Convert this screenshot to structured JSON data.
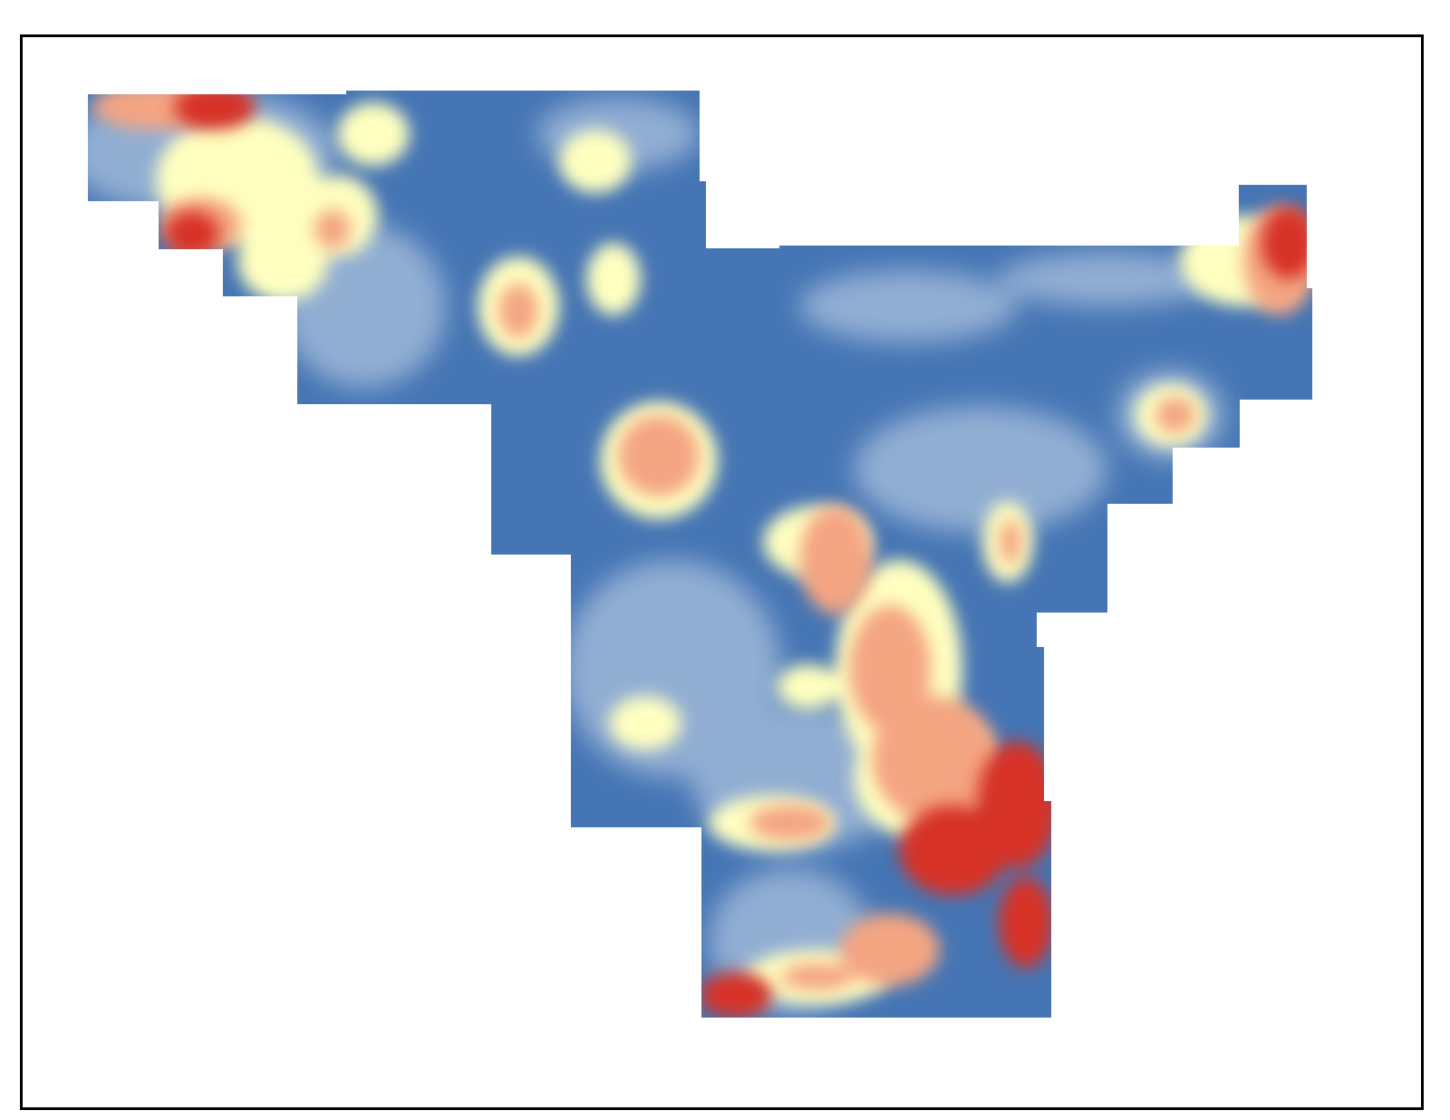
{
  "map": {
    "type": "heatmap",
    "colors": {
      "background": "#ffffff",
      "frame": "#000000",
      "low": "#4575b4",
      "low_mid": "#91aed3",
      "mid": "#ffffbf",
      "high_mid": "#f4a582",
      "high": "#d73027"
    },
    "color_scale": [
      "#4575b4",
      "#91aed3",
      "#ffffbf",
      "#f4a582",
      "#d73027"
    ]
  }
}
